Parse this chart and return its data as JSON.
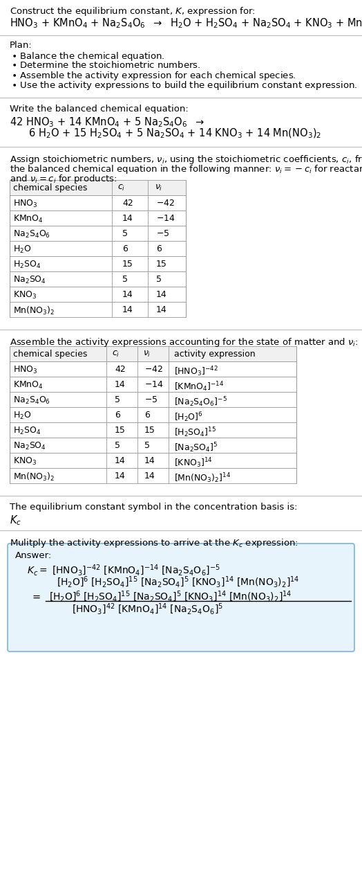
{
  "title_line1": "Construct the equilibrium constant, $K$, expression for:",
  "bg_color": "#ffffff",
  "answer_box_color": "#e8f4fc",
  "answer_box_border": "#90bfd8",
  "text_color": "#000000",
  "font_size": 9.5,
  "table_header_bg": "#f0f0f0",
  "table1_rows": [
    [
      "HNO$_3$",
      "42",
      "$-42$"
    ],
    [
      "KMnO$_4$",
      "14",
      "$-14$"
    ],
    [
      "Na$_2$S$_4$O$_6$",
      "5",
      "$-5$"
    ],
    [
      "H$_2$O",
      "6",
      "6"
    ],
    [
      "H$_2$SO$_4$",
      "15",
      "15"
    ],
    [
      "Na$_2$SO$_4$",
      "5",
      "5"
    ],
    [
      "KNO$_3$",
      "14",
      "14"
    ],
    [
      "Mn(NO$_3$)$_2$",
      "14",
      "14"
    ]
  ],
  "table2_rows": [
    [
      "HNO$_3$",
      "42",
      "$-42$",
      "[HNO$_3$]$^{-42}$"
    ],
    [
      "KMnO$_4$",
      "14",
      "$-14$",
      "[KMnO$_4$]$^{-14}$"
    ],
    [
      "Na$_2$S$_4$O$_6$",
      "5",
      "$-5$",
      "[Na$_2$S$_4$O$_6$]$^{-5}$"
    ],
    [
      "H$_2$O",
      "6",
      "6",
      "[H$_2$O]$^6$"
    ],
    [
      "H$_2$SO$_4$",
      "15",
      "15",
      "[H$_2$SO$_4$]$^{15}$"
    ],
    [
      "Na$_2$SO$_4$",
      "5",
      "5",
      "[Na$_2$SO$_4$]$^5$"
    ],
    [
      "KNO$_3$",
      "14",
      "14",
      "[KNO$_3$]$^{14}$"
    ],
    [
      "Mn(NO$_3$)$_2$",
      "14",
      "14",
      "[Mn(NO$_3$)$_2$]$^{14}$"
    ]
  ]
}
